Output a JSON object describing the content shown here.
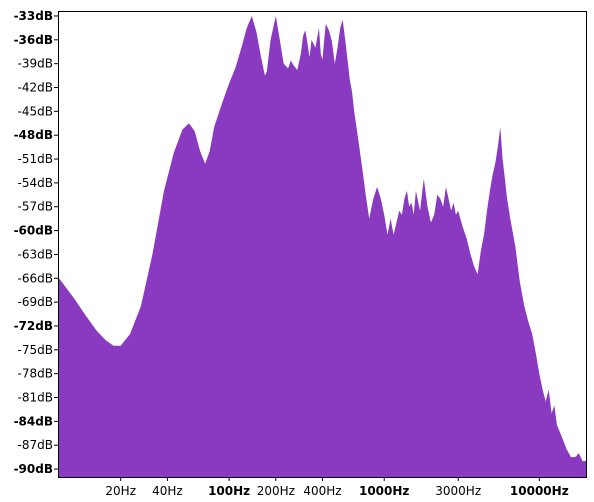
{
  "chart_data": {
    "type": "area",
    "title": "",
    "xlabel": "",
    "ylabel": "",
    "x_scale": "log",
    "xlim": [
      8,
      20000
    ],
    "ylim": [
      -91,
      -32.5
    ],
    "fill_color": "#8a3ac0",
    "grid": false,
    "y_ticks": [
      {
        "value": -33,
        "label": "-33dB",
        "bold": true
      },
      {
        "value": -36,
        "label": "-36dB",
        "bold": true
      },
      {
        "value": -39,
        "label": "-39dB",
        "bold": false
      },
      {
        "value": -42,
        "label": "-42dB",
        "bold": false
      },
      {
        "value": -45,
        "label": "-45dB",
        "bold": false
      },
      {
        "value": -48,
        "label": "-48dB",
        "bold": true
      },
      {
        "value": -51,
        "label": "-51dB",
        "bold": false
      },
      {
        "value": -54,
        "label": "-54dB",
        "bold": false
      },
      {
        "value": -57,
        "label": "-57dB",
        "bold": false
      },
      {
        "value": -60,
        "label": "-60dB",
        "bold": true
      },
      {
        "value": -63,
        "label": "-63dB",
        "bold": false
      },
      {
        "value": -66,
        "label": "-66dB",
        "bold": false
      },
      {
        "value": -69,
        "label": "-69dB",
        "bold": false
      },
      {
        "value": -72,
        "label": "-72dB",
        "bold": true
      },
      {
        "value": -75,
        "label": "-75dB",
        "bold": false
      },
      {
        "value": -78,
        "label": "-78dB",
        "bold": false
      },
      {
        "value": -81,
        "label": "-81dB",
        "bold": false
      },
      {
        "value": -84,
        "label": "-84dB",
        "bold": true
      },
      {
        "value": -87,
        "label": "-87dB",
        "bold": false
      },
      {
        "value": -90,
        "label": "-90dB",
        "bold": true
      }
    ],
    "x_ticks": [
      {
        "value": 20,
        "label": "20Hz",
        "bold": false
      },
      {
        "value": 40,
        "label": "40Hz",
        "bold": false
      },
      {
        "value": 100,
        "label": "100Hz",
        "bold": true
      },
      {
        "value": 200,
        "label": "200Hz",
        "bold": false
      },
      {
        "value": 400,
        "label": "400Hz",
        "bold": false
      },
      {
        "value": 1000,
        "label": "1000Hz",
        "bold": true
      },
      {
        "value": 3000,
        "label": "3000Hz",
        "bold": false
      },
      {
        "value": 10000,
        "label": "10000Hz",
        "bold": true
      }
    ],
    "series": [
      {
        "x": [
          8,
          10,
          12,
          14,
          16,
          18,
          20,
          23,
          27,
          32,
          38,
          44,
          50,
          55,
          60,
          65,
          70,
          75,
          80,
          90,
          100,
          110,
          120,
          130,
          140,
          150,
          160,
          170,
          175,
          185,
          200,
          210,
          225,
          240,
          250,
          260,
          275,
          290,
          300,
          310,
          320,
          330,
          340,
          360,
          380,
          390,
          400,
          410,
          420,
          440,
          460,
          480,
          500,
          520,
          540,
          560,
          580,
          600,
          620,
          640,
          680,
          720,
          760,
          800,
          850,
          900,
          950,
          1000,
          1050,
          1100,
          1150,
          1200,
          1250,
          1300,
          1350,
          1400,
          1450,
          1500,
          1550,
          1600,
          1700,
          1800,
          1900,
          2000,
          2100,
          2200,
          2300,
          2400,
          2500,
          2600,
          2700,
          2800,
          2900,
          3000,
          3200,
          3400,
          3600,
          3800,
          4000,
          4200,
          4400,
          4600,
          4800,
          5000,
          5200,
          5400,
          5600,
          5800,
          6000,
          6200,
          6500,
          7000,
          7500,
          8000,
          8500,
          9000,
          9500,
          10000,
          10500,
          11000,
          11500,
          12000,
          12500,
          13000,
          14000,
          15000,
          16000,
          17000,
          18000,
          19000,
          20000
        ],
        "y": [
          -66,
          -68.5,
          -70.8,
          -72.6,
          -73.8,
          -74.5,
          -74.5,
          -73,
          -69.5,
          -63,
          -55,
          -50.2,
          -47.3,
          -46.5,
          -47.5,
          -50,
          -51.6,
          -50,
          -47,
          -44,
          -41.5,
          -39.5,
          -37,
          -34.5,
          -33,
          -35,
          -38,
          -40.5,
          -40,
          -36,
          -33,
          -35.5,
          -39,
          -39.6,
          -38.6,
          -39.2,
          -39.8,
          -37.8,
          -35.5,
          -34.8,
          -36.5,
          -38.2,
          -36,
          -37,
          -34.5,
          -37.8,
          -38.5,
          -36,
          -34,
          -34.8,
          -36.2,
          -39,
          -37,
          -34.5,
          -33.5,
          -36,
          -38.5,
          -41,
          -42.5,
          -45,
          -48.5,
          -52,
          -55.5,
          -58.5,
          -56,
          -54.5,
          -56,
          -58,
          -60.5,
          -58.5,
          -60.5,
          -59,
          -57.5,
          -58,
          -56,
          -55,
          -57,
          -56.5,
          -58,
          -55,
          -57.5,
          -53.5,
          -57,
          -59,
          -58,
          -55.5,
          -56,
          -57,
          -54.5,
          -56,
          -57.5,
          -56.5,
          -58,
          -57.5,
          -59.5,
          -61,
          -63,
          -64.5,
          -65.5,
          -62.5,
          -60.5,
          -57.5,
          -55,
          -53,
          -51.5,
          -49.5,
          -47,
          -51,
          -53.5,
          -56,
          -58.5,
          -62,
          -66.5,
          -69.5,
          -71.5,
          -73,
          -75.5,
          -78,
          -80,
          -81.5,
          -80,
          -83,
          -82,
          -84.5,
          -86,
          -87.5,
          -88.5,
          -88.5,
          -88,
          -89,
          -89
        ]
      }
    ]
  }
}
